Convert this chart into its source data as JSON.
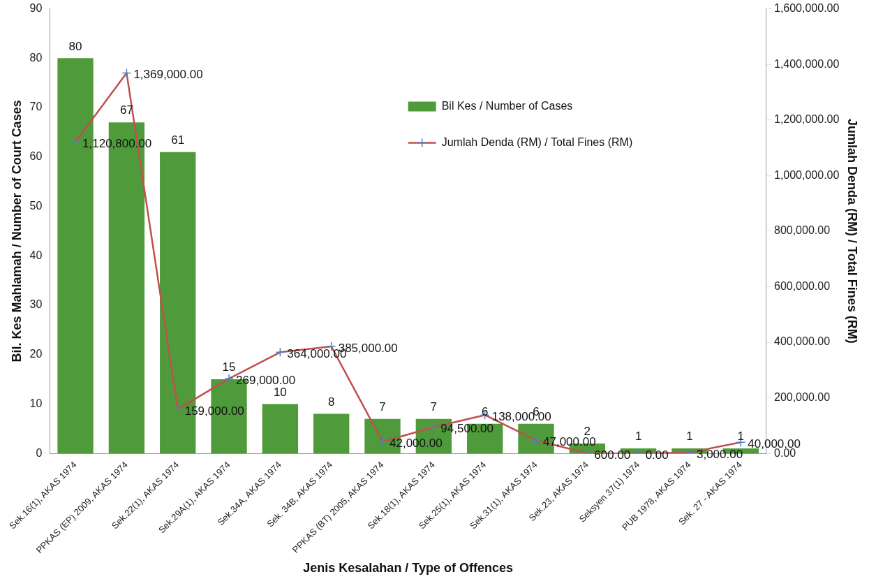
{
  "chart_data": {
    "type": "bar",
    "xlabel": "Jenis Kesalahan / Type of Offences",
    "ylabel": "Bil. Kes Mahlamah / Number of Court Cases",
    "y2label": "Jumlah Denda (RM) / Total Fines (RM)",
    "categories": [
      "Sek.16(1), AKAS 1974",
      "PPKAS (EP) 2009, AKAS 1974",
      "Sek.22(1), AKAS 1974",
      "Sek.29A(1), AKAS 1974",
      "Sek.34A, AKAS 1974",
      "Sek. 34B, AKAS 1974",
      "PPKAS (BT) 2005, AKAS 1974",
      "Sek.18(1), AKAS 1974",
      "Sek.25(1), AKAS 1974",
      "Sek.31(1), AKAS 1974",
      "Sek.23, AKAS 1974",
      "Seksyen 37(1) 1974",
      "PUB 1978, AKAS 1974",
      "Sek. 27 - AKAS 1974"
    ],
    "series": [
      {
        "name": "Bil Kes / Number of Cases",
        "color": "#4f9a3a",
        "values": [
          80,
          67,
          61,
          15,
          10,
          8,
          7,
          7,
          6,
          6,
          2,
          1,
          1,
          1
        ],
        "value_labels": [
          "80",
          "67",
          "61",
          "15",
          "10",
          "8",
          "7",
          "7",
          "6",
          "6",
          "2",
          "1",
          "1",
          "1"
        ]
      },
      {
        "name": "Jumlah Denda (RM) / Total Fines (RM)",
        "type": "line",
        "axis": "y2",
        "color": "#c0504d",
        "values": [
          1120800,
          1369000,
          159000,
          269000,
          364000,
          385000,
          42000,
          94500,
          138000,
          47000,
          600,
          0,
          3000,
          40000
        ],
        "value_labels": [
          "1,120,800.00",
          "1,369,000.00",
          "159,000.00",
          "269,000.00",
          "364,000.00",
          "385,000.00",
          "42,000.00",
          "94,500.00",
          "138,000.00",
          "47,000.00",
          "600.00",
          "0.00",
          "3,000.00",
          "40,000.00"
        ]
      }
    ],
    "ylim": [
      0,
      90
    ],
    "yticks": [
      0,
      10,
      20,
      30,
      40,
      50,
      60,
      70,
      80,
      90
    ],
    "y2lim": [
      0,
      1600000
    ],
    "y2ticks": [
      {
        "value": 0,
        "label": "0.00"
      },
      {
        "value": 200000,
        "label": "200,000.00"
      },
      {
        "value": 400000,
        "label": "400,000.00"
      },
      {
        "value": 600000,
        "label": "600,000.00"
      },
      {
        "value": 800000,
        "label": "800,000.00"
      },
      {
        "value": 1000000,
        "label": "1,000,000.00"
      },
      {
        "value": 1200000,
        "label": "1,200,000.00"
      },
      {
        "value": 1400000,
        "label": "1,400,000.00"
      },
      {
        "value": 1600000,
        "label": "1,600,000.00"
      }
    ],
    "grid": false,
    "legend": "top right",
    "marker": "cross",
    "line_style": "solid"
  }
}
